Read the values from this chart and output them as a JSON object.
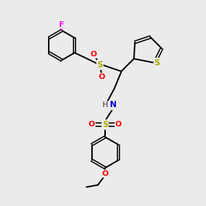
{
  "bg_color": "#ebebeb",
  "bond_color": "#000000",
  "atom_colors": {
    "F": "#ff00ff",
    "S": "#aaaa00",
    "O": "#ff0000",
    "N": "#0000cc",
    "H": "#777777",
    "C": "#000000"
  },
  "figsize": [
    3.0,
    3.0
  ],
  "dpi": 100
}
